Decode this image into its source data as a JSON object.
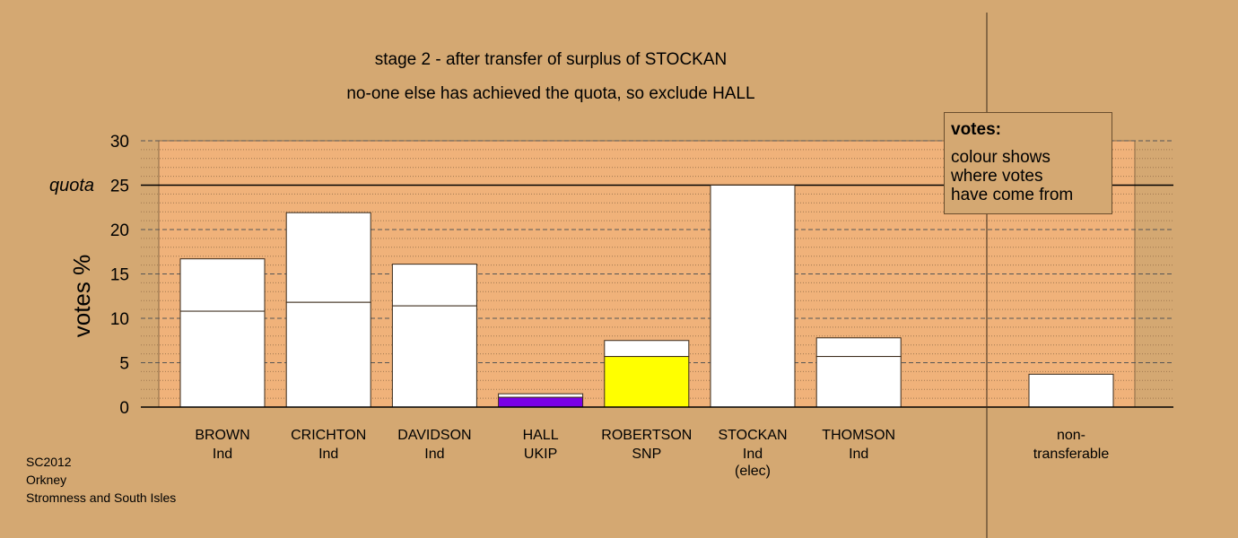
{
  "chart_data": {
    "type": "bar",
    "title": "stage 2 - after transfer of surplus of STOCKAN",
    "subtitle": "no-one else has achieved the quota, so exclude HALL",
    "ylabel": "votes %",
    "ylim": [
      0,
      30
    ],
    "yticks": [
      0,
      5,
      10,
      15,
      20,
      25,
      30
    ],
    "quota": {
      "label": "quota",
      "value": 25
    },
    "categories": [
      {
        "name": "BROWN",
        "party": "Ind",
        "extra": "",
        "base": 10.8,
        "total": 16.7,
        "color": "#ffffff"
      },
      {
        "name": "CRICHTON",
        "party": "Ind",
        "extra": "",
        "base": 11.8,
        "total": 21.9,
        "color": "#ffffff"
      },
      {
        "name": "DAVIDSON",
        "party": "Ind",
        "extra": "",
        "base": 11.4,
        "total": 16.1,
        "color": "#ffffff"
      },
      {
        "name": "HALL",
        "party": "UKIP",
        "extra": "",
        "base": 1.1,
        "total": 1.5,
        "color": "#7a00e6"
      },
      {
        "name": "ROBERTSON",
        "party": "SNP",
        "extra": "",
        "base": 5.7,
        "total": 7.5,
        "color": "#ffff00"
      },
      {
        "name": "STOCKAN",
        "party": "Ind",
        "extra": "(elec)",
        "base": 25.0,
        "total": 25.0,
        "color": "#ffffff"
      },
      {
        "name": "THOMSON",
        "party": "Ind",
        "extra": "",
        "base": 5.7,
        "total": 7.8,
        "color": "#ffffff"
      }
    ],
    "non_transferable": {
      "label_line1": "non-",
      "label_line2": "transferable",
      "value": 3.7
    },
    "grid": true
  },
  "legend": {
    "title": "votes:",
    "body": "colour shows\nwhere votes\nhave come from"
  },
  "footer": {
    "line1": "SC2012",
    "line2": "Orkney",
    "line3": "Stromness and South Isles"
  },
  "colors": {
    "background": "#d4a872",
    "plot_area": "#f0b27a",
    "transfer": "#ffffff"
  }
}
